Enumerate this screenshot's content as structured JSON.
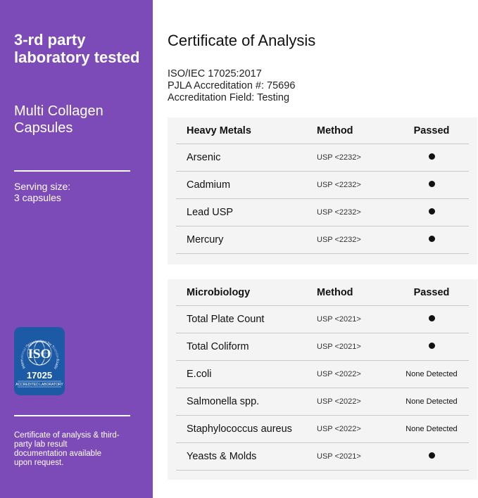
{
  "left": {
    "title": "3-rd party laboratory tested",
    "product": "Multi Collagen Capsules",
    "serving": [
      "Serving size:",
      "3 capsules"
    ],
    "badge": {
      "ring_text": "International Organization for Standardization",
      "logo": "ISO",
      "number": "17025",
      "label": "ACCREDITED LABORATORY"
    },
    "footnote": "Certificate of analysis & third-party lab result documentation available upon request.",
    "accent": "#7c4bb8"
  },
  "main": {
    "title": "Certificate of Analysis",
    "accreditation": [
      "ISO/IEC 17025:2017",
      "PJLA Accreditation #: 75696",
      "Accreditation Field: Testing"
    ],
    "tables": [
      {
        "headers": [
          "Heavy Metals",
          "Method",
          "Passed"
        ],
        "rows": [
          [
            "Arsenic",
            "USP <2232>",
            "dot"
          ],
          [
            "Cadmium",
            "USP <2232>",
            "dot"
          ],
          [
            "Lead USP",
            "USP <2232>",
            "dot"
          ],
          [
            "Mercury",
            "USP <2232>",
            "dot"
          ]
        ]
      },
      {
        "headers": [
          "Microbiology",
          "Method",
          "Passed"
        ],
        "rows": [
          [
            "Total Plate Count",
            "USP <2021>",
            "dot"
          ],
          [
            "Total Coliform",
            "USP <2021>",
            "dot"
          ],
          [
            "E.coli",
            "USP <2022>",
            "None Detected"
          ],
          [
            "Salmonella spp.",
            "USP <2022>",
            "None Detected"
          ],
          [
            "Staphylococcus aureus",
            "USP <2022>",
            "None Detected"
          ],
          [
            "Yeasts & Molds",
            "USP <2021>",
            "dot"
          ]
        ]
      }
    ]
  }
}
